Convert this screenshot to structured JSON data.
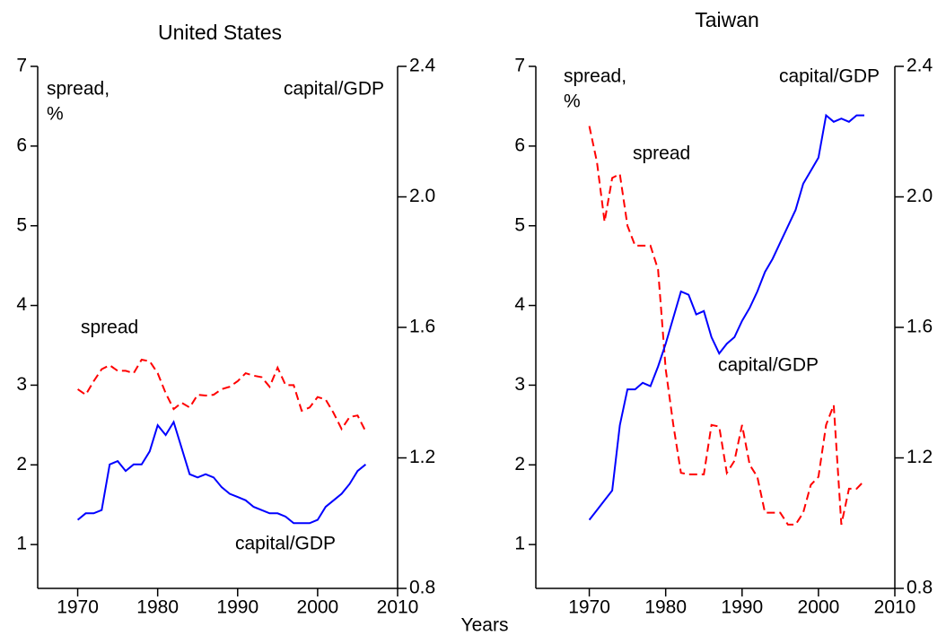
{
  "xlabel": "Years",
  "chart_data": [
    {
      "type": "line",
      "title": "United States",
      "ylabel_lines": [
        "spread,",
        "%"
      ],
      "y2label": "capital/GDP",
      "x": [
        1970,
        1971,
        1972,
        1973,
        1974,
        1975,
        1976,
        1977,
        1978,
        1979,
        1980,
        1981,
        1982,
        1983,
        1984,
        1985,
        1986,
        1987,
        1988,
        1989,
        1990,
        1991,
        1992,
        1993,
        1994,
        1995,
        1996,
        1997,
        1998,
        1999,
        2000,
        2001,
        2002,
        2003,
        2004,
        2005,
        2006
      ],
      "xlim": [
        1965,
        2010
      ],
      "xticks": [
        1970,
        1980,
        1990,
        2000,
        2010
      ],
      "ylim": [
        0.45,
        7
      ],
      "yticks": [
        1,
        2,
        3,
        4,
        5,
        6,
        7
      ],
      "y2lim": [
        0.8,
        2.4
      ],
      "y2ticks": [
        0.8,
        1.2,
        1.6,
        {
          "value": 2.0,
          "label": "2.0"
        },
        2.4
      ],
      "series": [
        {
          "name": "spread",
          "color": "#ff0000",
          "dash": true,
          "values": [
            2.95,
            2.88,
            3.05,
            3.2,
            3.25,
            3.18,
            3.18,
            3.15,
            3.32,
            3.3,
            3.15,
            2.9,
            2.7,
            2.78,
            2.72,
            2.88,
            2.87,
            2.88,
            2.95,
            2.98,
            3.05,
            3.15,
            3.12,
            3.1,
            2.98,
            3.22,
            3.0,
            3.0,
            2.68,
            2.72,
            2.85,
            2.82,
            2.65,
            2.45,
            2.6,
            2.62,
            2.42
          ]
        },
        {
          "name": "capital/GDP",
          "color": "#0000ff",
          "dash": false,
          "axis": "y2",
          "values": [
            1.01,
            1.03,
            1.03,
            1.04,
            1.18,
            1.19,
            1.16,
            1.18,
            1.18,
            1.22,
            1.3,
            1.27,
            1.31,
            1.23,
            1.15,
            1.14,
            1.15,
            1.14,
            1.11,
            1.09,
            1.08,
            1.07,
            1.05,
            1.04,
            1.03,
            1.03,
            1.02,
            1.0,
            1.0,
            1.0,
            1.01,
            1.05,
            1.07,
            1.09,
            1.12,
            1.16,
            1.18
          ]
        }
      ]
    },
    {
      "type": "line",
      "title": "Taiwan",
      "ylabel_lines": [
        "spread,",
        "%"
      ],
      "y2label": "capital/GDP",
      "x": [
        1970,
        1971,
        1972,
        1973,
        1974,
        1975,
        1976,
        1977,
        1978,
        1979,
        1980,
        1981,
        1982,
        1983,
        1984,
        1985,
        1986,
        1987,
        1988,
        1989,
        1990,
        1991,
        1992,
        1993,
        1994,
        1995,
        1996,
        1997,
        1998,
        1999,
        2000,
        2001,
        2002,
        2003,
        2004,
        2005,
        2006
      ],
      "xlim": [
        1963,
        2010
      ],
      "xticks": [
        1970,
        1980,
        1990,
        2000,
        2010
      ],
      "ylim": [
        0.45,
        7
      ],
      "yticks": [
        1,
        2,
        3,
        4,
        5,
        6,
        7
      ],
      "y2lim": [
        0.8,
        2.4
      ],
      "y2ticks": [
        0.8,
        1.2,
        1.6,
        {
          "value": 2.0,
          "label": "2.0"
        },
        2.4
      ],
      "series": [
        {
          "name": "spread",
          "color": "#ff0000",
          "dash": true,
          "values": [
            6.25,
            5.8,
            5.05,
            5.6,
            5.65,
            5.0,
            4.75,
            4.75,
            4.75,
            4.45,
            3.2,
            2.5,
            1.9,
            1.88,
            1.88,
            1.88,
            2.5,
            2.48,
            1.9,
            2.05,
            2.5,
            2.0,
            1.85,
            1.4,
            1.4,
            1.4,
            1.25,
            1.25,
            1.4,
            1.75,
            1.85,
            2.5,
            2.75,
            1.25,
            1.7,
            1.7,
            1.8
          ]
        },
        {
          "name": "capital/GDP",
          "color": "#0000ff",
          "dash": false,
          "axis": "y2",
          "values": [
            1.01,
            1.04,
            1.07,
            1.1,
            1.3,
            1.41,
            1.41,
            1.43,
            1.42,
            1.48,
            1.55,
            1.63,
            1.71,
            1.7,
            1.64,
            1.65,
            1.57,
            1.52,
            1.55,
            1.57,
            1.62,
            1.66,
            1.71,
            1.77,
            1.81,
            1.86,
            1.91,
            1.96,
            2.04,
            2.08,
            2.12,
            2.25,
            2.23,
            2.24,
            2.23,
            2.25,
            2.25
          ]
        }
      ]
    }
  ]
}
